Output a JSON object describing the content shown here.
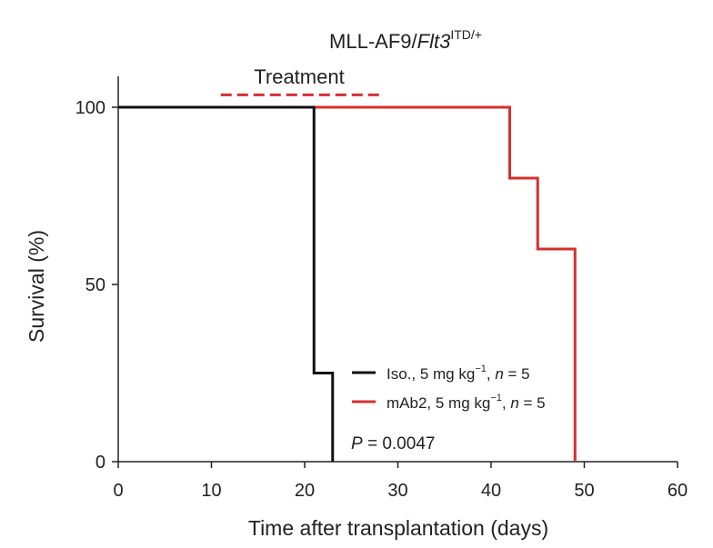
{
  "chart_data": {
    "type": "line",
    "title_main": "MLL-AF9/",
    "title_italic": "Flt3",
    "title_sup": "ITD/+",
    "xlabel": "Time after transplantation (days)",
    "ylabel": "Survival (%)",
    "xlim": [
      0,
      60
    ],
    "ylim": [
      0,
      100
    ],
    "x_ticks": [
      0,
      10,
      20,
      30,
      40,
      50,
      60
    ],
    "x_tick_labels": [
      "0",
      "10",
      "20",
      "30",
      "40",
      "50",
      "60"
    ],
    "y_ticks": [
      0,
      50,
      100
    ],
    "y_tick_labels": [
      "0",
      "50",
      "100"
    ],
    "treatment": {
      "label": "Treatment",
      "x_start": 11,
      "x_end": 28,
      "y": 103.5,
      "color": "#d62f2f"
    },
    "series": [
      {
        "label_main": "Iso., 5 mg kg",
        "label_sup": "−1",
        "label_tail": ", ",
        "label_n": "n",
        "label_n_value": " = 5",
        "color": "#111111",
        "x": [
          0,
          21,
          21,
          23,
          23
        ],
        "y": [
          100,
          100,
          25,
          25,
          0
        ]
      },
      {
        "label_main": "mAb2, 5 mg kg",
        "label_sup": "−1",
        "label_tail": ", ",
        "label_n": "n",
        "label_n_value": " = 5",
        "color": "#d62f2f",
        "x": [
          0,
          42,
          42,
          45,
          45,
          49,
          49
        ],
        "y": [
          100,
          100,
          80,
          80,
          60,
          60,
          0
        ]
      }
    ],
    "pvalue_label": "P",
    "pvalue_value": " = 0.0047",
    "legend_placement": "bottom-center",
    "grid": false
  }
}
